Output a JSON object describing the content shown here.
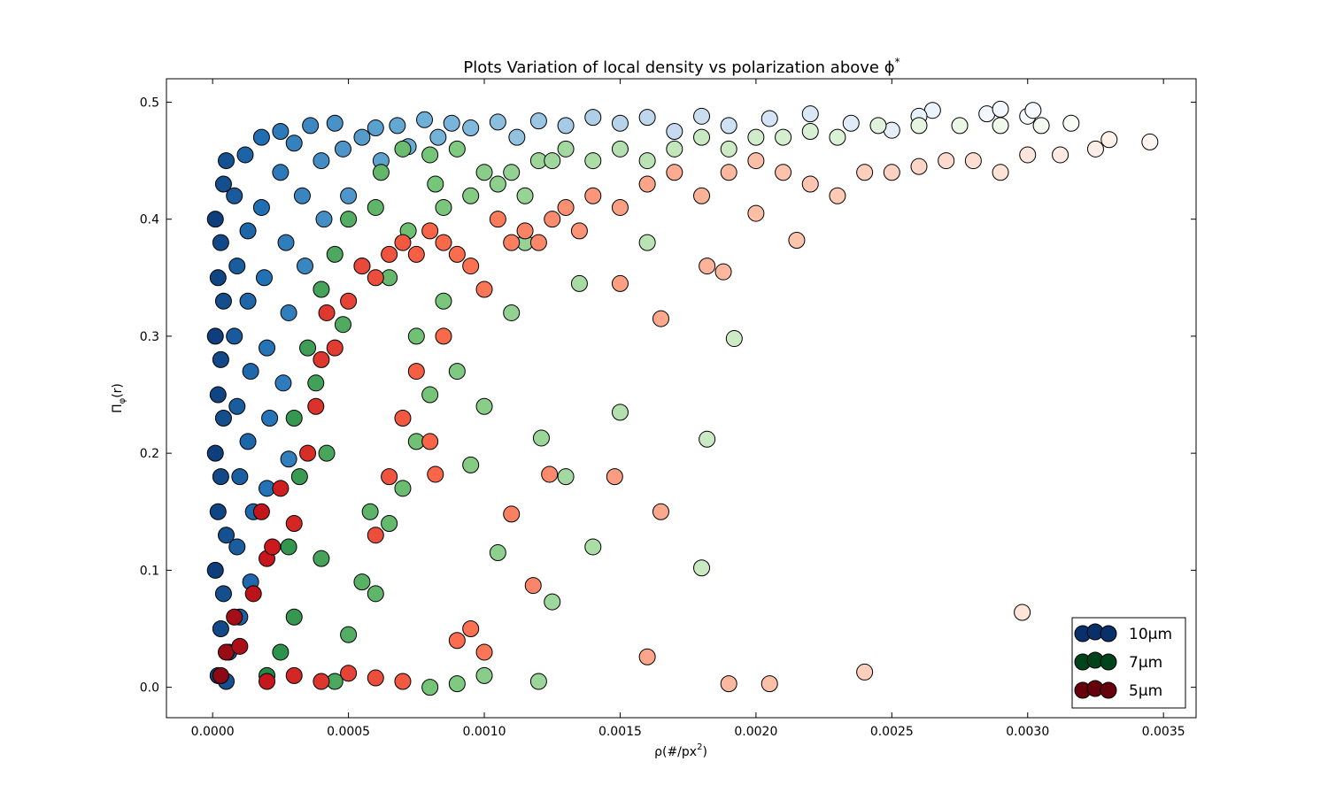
{
  "chart_data": {
    "type": "scatter",
    "title_main": "Plots Variation of local density vs polarization above ",
    "title_symbol": "ϕ",
    "title_sup": "*",
    "xlabel_main": "ρ(#/px",
    "xlabel_sup": "2",
    "xlabel_close": ")",
    "ylabel_main": "Π",
    "ylabel_sub": "φ",
    "ylabel_rest": "(r)",
    "xlim": [
      -0.00017,
      0.00362
    ],
    "ylim": [
      -0.026,
      0.52
    ],
    "x_ticks": [
      0.0,
      0.0005,
      0.001,
      0.0015,
      0.002,
      0.0025,
      0.003,
      0.0035
    ],
    "x_tick_labels": [
      "0.0000",
      "0.0005",
      "0.0010",
      "0.0015",
      "0.0020",
      "0.0025",
      "0.0030",
      "0.0035"
    ],
    "y_ticks": [
      0.0,
      0.1,
      0.2,
      0.3,
      0.4,
      0.5
    ],
    "y_tick_labels": [
      "0.0",
      "0.1",
      "0.2",
      "0.3",
      "0.4",
      "0.5"
    ],
    "grid": false,
    "legend_position": "lower-right",
    "color_mapping": "each point colored by its local density within its series colormap (dark at low ρ, light at high ρ)",
    "series": [
      {
        "name": "10µm",
        "legend_color": "#08306b",
        "colormap": [
          "#08306b",
          "#2171b5",
          "#6baed6",
          "#c6dbef",
          "#f7fbff"
        ],
        "points": [
          [
            1e-05,
            0.4
          ],
          [
            2e-05,
            0.35
          ],
          [
            1e-05,
            0.3
          ],
          [
            2e-05,
            0.25
          ],
          [
            1e-05,
            0.2
          ],
          [
            2e-05,
            0.15
          ],
          [
            1e-05,
            0.1
          ],
          [
            3e-05,
            0.05
          ],
          [
            2e-05,
            0.01
          ],
          [
            4e-05,
            0.43
          ],
          [
            5e-05,
            0.45
          ],
          [
            3e-05,
            0.38
          ],
          [
            4e-05,
            0.33
          ],
          [
            3e-05,
            0.28
          ],
          [
            4e-05,
            0.23
          ],
          [
            3e-05,
            0.18
          ],
          [
            5e-05,
            0.13
          ],
          [
            4e-05,
            0.08
          ],
          [
            6e-05,
            0.03
          ],
          [
            5e-05,
            0.005
          ],
          [
            8e-05,
            0.42
          ],
          [
            9e-05,
            0.36
          ],
          [
            8e-05,
            0.3
          ],
          [
            9e-05,
            0.24
          ],
          [
            0.0001,
            0.18
          ],
          [
            9e-05,
            0.12
          ],
          [
            0.0001,
            0.06
          ],
          [
            0.00012,
            0.455
          ],
          [
            0.00013,
            0.39
          ],
          [
            0.00013,
            0.33
          ],
          [
            0.00014,
            0.27
          ],
          [
            0.00013,
            0.21
          ],
          [
            0.00015,
            0.15
          ],
          [
            0.00014,
            0.09
          ],
          [
            0.00018,
            0.47
          ],
          [
            0.00018,
            0.41
          ],
          [
            0.00019,
            0.35
          ],
          [
            0.0002,
            0.29
          ],
          [
            0.00021,
            0.23
          ],
          [
            0.0002,
            0.17
          ],
          [
            0.00025,
            0.475
          ],
          [
            0.00025,
            0.44
          ],
          [
            0.00027,
            0.38
          ],
          [
            0.00028,
            0.32
          ],
          [
            0.00026,
            0.26
          ],
          [
            0.00028,
            0.195
          ],
          [
            0.0003,
            0.465
          ],
          [
            0.00033,
            0.42
          ],
          [
            0.00034,
            0.36
          ],
          [
            0.00036,
            0.48
          ],
          [
            0.0004,
            0.45
          ],
          [
            0.00041,
            0.4
          ],
          [
            0.00045,
            0.482
          ],
          [
            0.00048,
            0.46
          ],
          [
            0.0005,
            0.42
          ],
          [
            0.00055,
            0.47
          ],
          [
            0.0006,
            0.478
          ],
          [
            0.00062,
            0.45
          ],
          [
            0.00068,
            0.48
          ],
          [
            0.00072,
            0.462
          ],
          [
            0.00078,
            0.485
          ],
          [
            0.00083,
            0.47
          ],
          [
            0.00088,
            0.482
          ],
          [
            0.00095,
            0.478
          ],
          [
            0.00105,
            0.483
          ],
          [
            0.00112,
            0.47
          ],
          [
            0.0012,
            0.484
          ],
          [
            0.0013,
            0.48
          ],
          [
            0.0014,
            0.487
          ],
          [
            0.0015,
            0.482
          ],
          [
            0.0016,
            0.487
          ],
          [
            0.0017,
            0.475
          ],
          [
            0.0018,
            0.488
          ],
          [
            0.0019,
            0.48
          ],
          [
            0.00205,
            0.486
          ],
          [
            0.0022,
            0.49
          ],
          [
            0.00235,
            0.482
          ],
          [
            0.0025,
            0.476
          ],
          [
            0.00265,
            0.493
          ],
          [
            0.00285,
            0.49
          ],
          [
            0.003,
            0.488
          ],
          [
            0.00302,
            0.493
          ],
          [
            0.0029,
            0.494
          ],
          [
            0.0026,
            0.488
          ]
        ]
      },
      {
        "name": "7µm",
        "legend_color": "#00441b",
        "colormap": [
          "#00441b",
          "#238b45",
          "#74c476",
          "#c7e9c0",
          "#f7fcf5"
        ],
        "points": [
          [
            0.0002,
            0.01
          ],
          [
            0.00025,
            0.03
          ],
          [
            0.0003,
            0.06
          ],
          [
            0.00028,
            0.12
          ],
          [
            0.00032,
            0.18
          ],
          [
            0.0003,
            0.23
          ],
          [
            0.00035,
            0.29
          ],
          [
            0.0004,
            0.34
          ],
          [
            0.00038,
            0.26
          ],
          [
            0.00042,
            0.2
          ],
          [
            0.00045,
            0.37
          ],
          [
            0.0005,
            0.4
          ],
          [
            0.00048,
            0.31
          ],
          [
            0.00055,
            0.36
          ],
          [
            0.0006,
            0.41
          ],
          [
            0.00062,
            0.44
          ],
          [
            0.00065,
            0.35
          ],
          [
            0.0007,
            0.46
          ],
          [
            0.00072,
            0.39
          ],
          [
            0.00075,
            0.3
          ],
          [
            0.0008,
            0.455
          ],
          [
            0.00082,
            0.43
          ],
          [
            0.00085,
            0.41
          ],
          [
            0.0009,
            0.46
          ],
          [
            0.00095,
            0.42
          ],
          [
            0.001,
            0.44
          ],
          [
            0.00105,
            0.43
          ],
          [
            0.0011,
            0.44
          ],
          [
            0.00115,
            0.42
          ],
          [
            0.0012,
            0.45
          ],
          [
            0.00125,
            0.45
          ],
          [
            0.0013,
            0.46
          ],
          [
            0.0014,
            0.45
          ],
          [
            0.0015,
            0.46
          ],
          [
            0.0016,
            0.45
          ],
          [
            0.0017,
            0.46
          ],
          [
            0.0018,
            0.47
          ],
          [
            0.0019,
            0.46
          ],
          [
            0.002,
            0.47
          ],
          [
            0.0021,
            0.47
          ],
          [
            0.0022,
            0.475
          ],
          [
            0.0023,
            0.47
          ],
          [
            0.00245,
            0.48
          ],
          [
            0.0026,
            0.48
          ],
          [
            0.00275,
            0.48
          ],
          [
            0.0029,
            0.48
          ],
          [
            0.00305,
            0.48
          ],
          [
            0.00316,
            0.482
          ],
          [
            0.0006,
            0.08
          ],
          [
            0.00065,
            0.14
          ],
          [
            0.0007,
            0.17
          ],
          [
            0.00075,
            0.21
          ],
          [
            0.0008,
            0.25
          ],
          [
            0.00085,
            0.33
          ],
          [
            0.0009,
            0.27
          ],
          [
            0.00095,
            0.19
          ],
          [
            0.001,
            0.24
          ],
          [
            0.00105,
            0.115
          ],
          [
            0.0011,
            0.32
          ],
          [
            0.00115,
            0.38
          ],
          [
            0.00121,
            0.213
          ],
          [
            0.00125,
            0.073
          ],
          [
            0.0013,
            0.18
          ],
          [
            0.00135,
            0.345
          ],
          [
            0.0014,
            0.12
          ],
          [
            0.0015,
            0.235
          ],
          [
            0.0016,
            0.38
          ],
          [
            0.0018,
            0.102
          ],
          [
            0.00182,
            0.212
          ],
          [
            0.00192,
            0.298
          ],
          [
            0.0008,
            0.0
          ],
          [
            0.0009,
            0.003
          ],
          [
            0.001,
            0.01
          ],
          [
            0.0012,
            0.005
          ],
          [
            0.00045,
            0.005
          ],
          [
            0.0005,
            0.045
          ],
          [
            0.00055,
            0.09
          ],
          [
            0.00058,
            0.15
          ],
          [
            0.0004,
            0.11
          ]
        ]
      },
      {
        "name": "5µm",
        "legend_color": "#67000d",
        "colormap": [
          "#67000d",
          "#cb181d",
          "#fb6a4a",
          "#fcbba1",
          "#fff5f0"
        ],
        "points": [
          [
            3e-05,
            0.01
          ],
          [
            5e-05,
            0.03
          ],
          [
            8e-05,
            0.06
          ],
          [
            0.0001,
            0.035
          ],
          [
            0.00015,
            0.08
          ],
          [
            0.0002,
            0.11
          ],
          [
            0.00018,
            0.15
          ],
          [
            0.00022,
            0.12
          ],
          [
            0.00025,
            0.17
          ],
          [
            0.0003,
            0.14
          ],
          [
            0.00035,
            0.2
          ],
          [
            0.00038,
            0.24
          ],
          [
            0.0004,
            0.28
          ],
          [
            0.00042,
            0.32
          ],
          [
            0.00045,
            0.29
          ],
          [
            0.0005,
            0.33
          ],
          [
            0.00055,
            0.36
          ],
          [
            0.0006,
            0.35
          ],
          [
            0.00065,
            0.37
          ],
          [
            0.0007,
            0.38
          ],
          [
            0.00075,
            0.37
          ],
          [
            0.0008,
            0.39
          ],
          [
            0.00085,
            0.38
          ],
          [
            0.0009,
            0.37
          ],
          [
            0.00095,
            0.36
          ],
          [
            0.001,
            0.34
          ],
          [
            0.00105,
            0.4
          ],
          [
            0.0011,
            0.38
          ],
          [
            0.00115,
            0.39
          ],
          [
            0.0012,
            0.38
          ],
          [
            0.00125,
            0.4
          ],
          [
            0.0013,
            0.41
          ],
          [
            0.0014,
            0.42
          ],
          [
            0.0015,
            0.41
          ],
          [
            0.0016,
            0.43
          ],
          [
            0.0017,
            0.44
          ],
          [
            0.0018,
            0.42
          ],
          [
            0.0019,
            0.44
          ],
          [
            0.002,
            0.45
          ],
          [
            0.0021,
            0.44
          ],
          [
            0.0022,
            0.43
          ],
          [
            0.0023,
            0.42
          ],
          [
            0.0024,
            0.44
          ],
          [
            0.0025,
            0.44
          ],
          [
            0.0026,
            0.445
          ],
          [
            0.0027,
            0.45
          ],
          [
            0.0028,
            0.45
          ],
          [
            0.0029,
            0.44
          ],
          [
            0.003,
            0.455
          ],
          [
            0.00312,
            0.455
          ],
          [
            0.00325,
            0.46
          ],
          [
            0.0033,
            0.468
          ],
          [
            0.00345,
            0.466
          ],
          [
            0.0006,
            0.13
          ],
          [
            0.00065,
            0.18
          ],
          [
            0.0007,
            0.23
          ],
          [
            0.00075,
            0.27
          ],
          [
            0.0008,
            0.21
          ],
          [
            0.00082,
            0.182
          ],
          [
            0.00085,
            0.3
          ],
          [
            0.0009,
            0.04
          ],
          [
            0.00095,
            0.05
          ],
          [
            0.001,
            0.03
          ],
          [
            0.0011,
            0.148
          ],
          [
            0.00118,
            0.087
          ],
          [
            0.00124,
            0.182
          ],
          [
            0.00135,
            0.39
          ],
          [
            0.00148,
            0.18
          ],
          [
            0.0015,
            0.345
          ],
          [
            0.0016,
            0.026
          ],
          [
            0.00165,
            0.15
          ],
          [
            0.00165,
            0.315
          ],
          [
            0.00182,
            0.36
          ],
          [
            0.00188,
            0.355
          ],
          [
            0.0019,
            0.003
          ],
          [
            0.002,
            0.405
          ],
          [
            0.00205,
            0.003
          ],
          [
            0.00215,
            0.382
          ],
          [
            0.0024,
            0.013
          ],
          [
            0.00298,
            0.064
          ],
          [
            0.0002,
            0.005
          ],
          [
            0.0003,
            0.01
          ],
          [
            0.0004,
            0.005
          ],
          [
            0.0005,
            0.012
          ],
          [
            0.0006,
            0.008
          ],
          [
            0.0007,
            0.005
          ]
        ]
      }
    ]
  }
}
